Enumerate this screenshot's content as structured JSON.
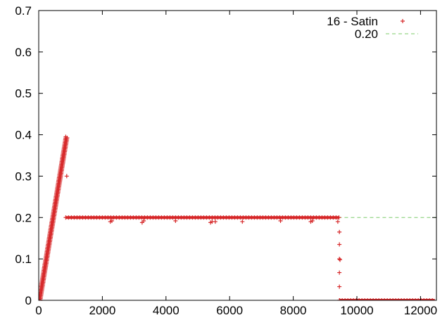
{
  "chart_data": {
    "type": "scatter",
    "title": "",
    "xlabel": "",
    "ylabel": "",
    "xlim": [
      0,
      12500
    ],
    "ylim": [
      0,
      0.7
    ],
    "grid": false,
    "legend_position": "top-right",
    "x_ticks": [
      "0",
      "2000",
      "4000",
      "6000",
      "8000",
      "10000",
      "12000"
    ],
    "y_ticks": [
      "0",
      "0.1",
      "0.2",
      "0.3",
      "0.4",
      "0.5",
      "0.6",
      "0.7"
    ],
    "series": [
      {
        "name": "16 - Satin",
        "marker": "plus",
        "color": "#d62728",
        "segments": [
          {
            "kind": "ramp",
            "x": [
              0,
              850
            ],
            "y": [
              0.0,
              0.395
            ]
          },
          {
            "kind": "plateau",
            "x": [
              850,
              9450
            ],
            "y": 0.2
          },
          {
            "kind": "floor",
            "x": [
              9450,
              12450
            ],
            "y": 0.0
          }
        ],
        "points": [
          [
            880,
            0.3
          ],
          [
            2250,
            0.19
          ],
          [
            2300,
            0.192
          ],
          [
            3250,
            0.188
          ],
          [
            3300,
            0.192
          ],
          [
            4300,
            0.192
          ],
          [
            5400,
            0.188
          ],
          [
            5450,
            0.19
          ],
          [
            5550,
            0.19
          ],
          [
            6400,
            0.19
          ],
          [
            7600,
            0.192
          ],
          [
            8550,
            0.19
          ],
          [
            8600,
            0.192
          ],
          [
            9400,
            0.19
          ],
          [
            9450,
            0.165
          ],
          [
            9450,
            0.135
          ],
          [
            9450,
            0.1
          ],
          [
            9470,
            0.098
          ],
          [
            9450,
            0.067
          ],
          [
            9450,
            0.033
          ],
          [
            9460,
            0.0
          ]
        ]
      },
      {
        "name": "0.20",
        "type": "reference-line",
        "style": "dashed",
        "color": "#7ccb6a",
        "y": 0.2,
        "x": [
          850,
          12500
        ]
      }
    ]
  }
}
